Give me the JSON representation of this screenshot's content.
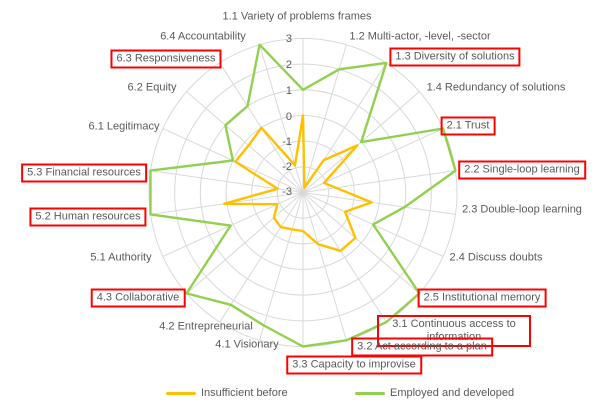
{
  "chart_data": {
    "type": "radar",
    "title": "",
    "categories": [
      {
        "label": "1.1 Variety of problems frames",
        "boxed": false
      },
      {
        "label": "1.2 Multi-actor, -level, -sector",
        "boxed": false
      },
      {
        "label": "1.3 Diversity of solutions",
        "boxed": true
      },
      {
        "label": "1.4 Redundancy of solutions",
        "boxed": false
      },
      {
        "label": "2.1 Trust",
        "boxed": true
      },
      {
        "label": "2.2 Single-loop learning",
        "boxed": true
      },
      {
        "label": "2.3 Double-loop learning",
        "boxed": false
      },
      {
        "label": "2.4 Discuss doubts",
        "boxed": false
      },
      {
        "label": "2.5 Institutional memory",
        "boxed": true
      },
      {
        "label": "3.1 Continuous access to information",
        "boxed": true
      },
      {
        "label": "3.2 Act according to a plan",
        "boxed": true
      },
      {
        "label": "3.3 Capacity to improvise",
        "boxed": true
      },
      {
        "label": "4.1 Visionary",
        "boxed": false
      },
      {
        "label": "4.2 Entrepreneurial",
        "boxed": false
      },
      {
        "label": "4.3 Collaborative",
        "boxed": true
      },
      {
        "label": "5.1 Authority",
        "boxed": false
      },
      {
        "label": "5.2 Human resources",
        "boxed": true
      },
      {
        "label": "5.3 Financial resources",
        "boxed": true
      },
      {
        "label": "6.1 Legitimacy",
        "boxed": false
      },
      {
        "label": "6.2 Equity",
        "boxed": false
      },
      {
        "label": "6.3 Responsiveness",
        "boxed": true
      },
      {
        "label": "6.4 Accountability",
        "boxed": false
      }
    ],
    "series": [
      {
        "name": "Insufficient before",
        "color": "#FFC000",
        "values": [
          0,
          -2.8,
          -1.5,
          -0.2,
          -2.1,
          -1.7,
          -0.3,
          -1.2,
          -0.3,
          -0.3,
          -0.9,
          -1.5,
          -1.5,
          -1.4,
          -1.5,
          -1.9,
          0.1,
          -2,
          -0.1,
          -0.2,
          0,
          -1.9
        ]
      },
      {
        "name": "Employed and developed",
        "color": "#92D050",
        "values": [
          1,
          2,
          3,
          0,
          3,
          3,
          1,
          0,
          3,
          3,
          3,
          3,
          2.4,
          2.2,
          3,
          0.1,
          3,
          3,
          0,
          1,
          1,
          3
        ]
      }
    ],
    "scale": {
      "min": -3,
      "max": 3,
      "step": 1,
      "tick_labels": [
        "3",
        "2",
        "1",
        "0",
        "-1",
        "-2",
        "-3"
      ]
    },
    "grid": true,
    "legend_position": "bottom"
  },
  "colors": {
    "grid": "#D9D9D9",
    "text": "#595959",
    "highlight_box": "#FF0000",
    "background": "#FFFFFF"
  }
}
